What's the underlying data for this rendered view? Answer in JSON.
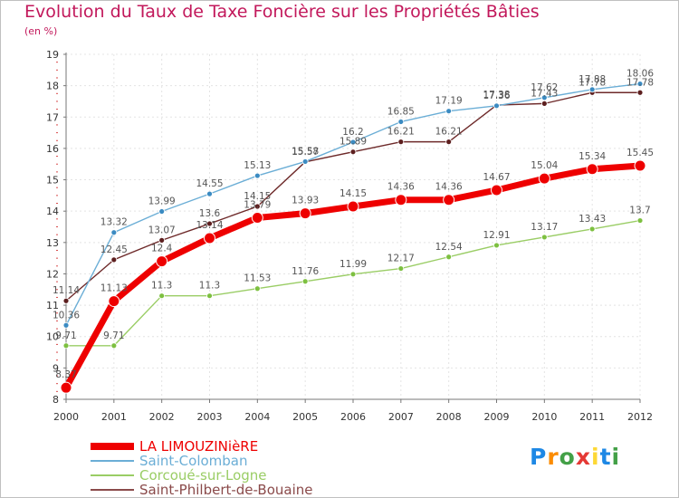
{
  "title": "Evolution du Taux de Taxe Foncière sur les Propriétés Bâties",
  "unit_label": "(en %)",
  "logo": {
    "text": "Proxiti",
    "letters": [
      {
        "ch": "P",
        "color": "#1e88e5"
      },
      {
        "ch": "r",
        "color": "#fb8c00"
      },
      {
        "ch": "o",
        "color": "#43a047"
      },
      {
        "ch": "x",
        "color": "#e53935"
      },
      {
        "ch": "i",
        "color": "#fdd835"
      },
      {
        "ch": "t",
        "color": "#1e88e5"
      },
      {
        "ch": "i",
        "color": "#43a047"
      }
    ]
  },
  "chart_data": {
    "type": "line",
    "title": "Evolution du Taux de Taxe Foncière sur les Propriétés Bâties",
    "ylabel": "(en %)",
    "xlabel": "",
    "ylim": [
      8,
      19
    ],
    "yticks": [
      "8",
      "9",
      "10",
      "11",
      "12",
      "13",
      "14",
      "15",
      "16",
      "17",
      "18",
      "19"
    ],
    "categories": [
      "2000",
      "2001",
      "2002",
      "2003",
      "2004",
      "2005",
      "2006",
      "2007",
      "2008",
      "2009",
      "2010",
      "2011",
      "2012"
    ],
    "series": [
      {
        "name": "Saint-Philbert-de-Bouaine",
        "color": "#6e2a2a",
        "legend_color": "#8a4a4a",
        "marker_fill": "#5d1f1f",
        "width": 1.4,
        "marker_r": 3,
        "values": [
          11.14,
          12.45,
          13.07,
          13.6,
          14.15,
          15.57,
          15.89,
          16.21,
          16.21,
          17.38,
          17.43,
          17.78,
          17.78
        ],
        "labels": [
          "11.14",
          "12.45",
          "13.07",
          "13.6",
          "14.15",
          "15.57",
          "15.89",
          "16.21",
          "16.21",
          "17.38",
          "17.43",
          "17.78",
          "17.78"
        ]
      },
      {
        "name": "Saint-Colomban",
        "color": "#6baed6",
        "legend_color": "#6baed6",
        "marker_fill": "#3b8bc2",
        "width": 1.4,
        "marker_r": 3,
        "values": [
          10.36,
          13.32,
          13.99,
          14.55,
          15.13,
          15.58,
          16.2,
          16.85,
          17.19,
          17.36,
          17.62,
          17.88,
          18.06
        ],
        "labels": [
          "10.36",
          "13.32",
          "13.99",
          "14.55",
          "15.13",
          "15.58",
          "16.2",
          "16.85",
          "17.19",
          "17.36",
          "17.62",
          "17.88",
          "18.06"
        ]
      },
      {
        "name": "Corcoué-sur-Logne",
        "color": "#9acd65",
        "legend_color": "#9acd65",
        "marker_fill": "#7dc040",
        "width": 1.4,
        "marker_r": 3,
        "values": [
          9.71,
          9.71,
          11.3,
          11.3,
          11.53,
          11.76,
          11.99,
          12.17,
          12.54,
          12.91,
          13.17,
          13.43,
          13.7
        ],
        "labels": [
          "9.71",
          "9.71",
          "11.3",
          "11.3",
          "11.53",
          "11.76",
          "11.99",
          "12.17",
          "12.54",
          "12.91",
          "13.17",
          "13.43",
          "13.7"
        ]
      },
      {
        "name": "LA LIMOUZINièRE",
        "color": "#ee0000",
        "legend_color": "#ee0000",
        "marker_fill": "#ee0000",
        "width": 7,
        "marker_r": 6,
        "values": [
          8.37,
          11.13,
          12.4,
          13.14,
          13.79,
          13.93,
          14.15,
          14.36,
          14.36,
          14.67,
          15.04,
          15.34,
          15.45
        ],
        "labels": [
          "8.37",
          "11.13",
          "12.4",
          "13.14",
          "13.79",
          "13.93",
          "14.15",
          "14.36",
          "14.36",
          "14.67",
          "15.04",
          "15.34",
          "15.45"
        ]
      }
    ],
    "legend_order": [
      "LA LIMOUZINièRE",
      "Saint-Colomban",
      "Corcoué-sur-Logne",
      "Saint-Philbert-de-Bouaine"
    ],
    "legend_placement": "bottom-left"
  }
}
